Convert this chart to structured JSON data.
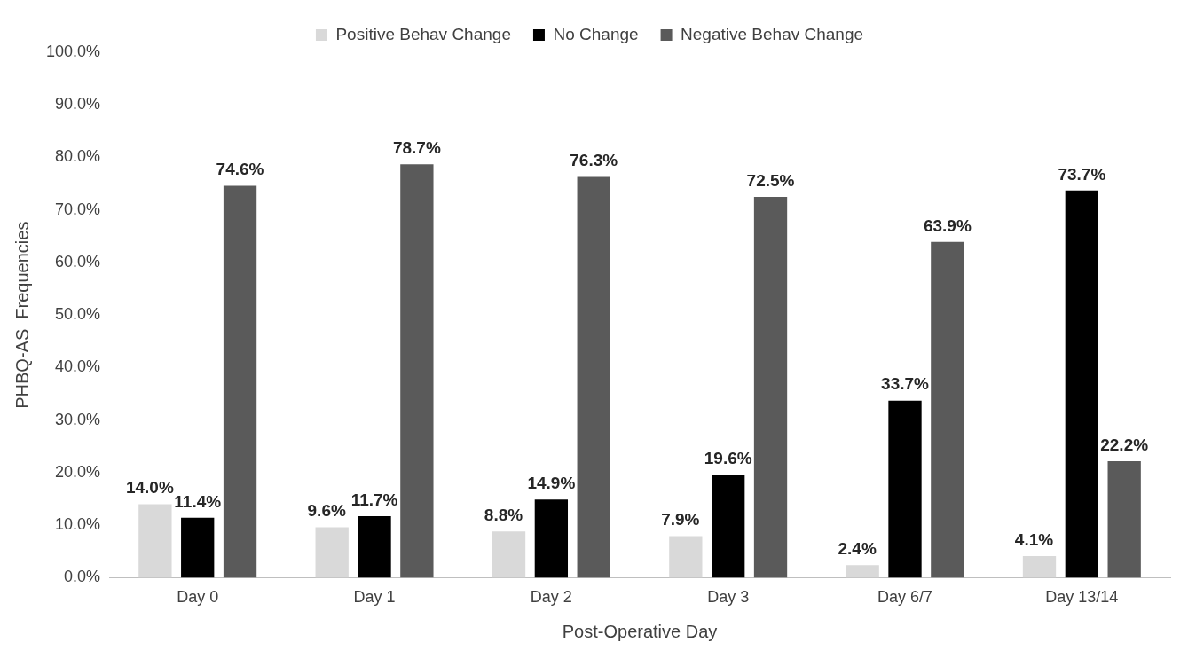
{
  "chart_data": {
    "type": "bar",
    "xlabel": "Post-Operative Day",
    "ylabel": "PHBQ-AS  Frequencies",
    "categories": [
      "Day 0",
      "Day 1",
      "Day 2",
      "Day 3",
      "Day 6/7",
      "Day 13/14"
    ],
    "series": [
      {
        "name": "Positive Behav Change",
        "color": "#d9d9d9",
        "values": [
          14.0,
          9.6,
          8.8,
          7.9,
          2.4,
          4.1
        ]
      },
      {
        "name": "No Change",
        "color": "#000000",
        "values": [
          11.4,
          11.7,
          14.9,
          19.6,
          33.7,
          73.7
        ]
      },
      {
        "name": "Negative Behav Change",
        "color": "#5a5a5a",
        "values": [
          74.6,
          78.7,
          76.3,
          72.5,
          63.9,
          22.2
        ]
      }
    ],
    "value_labels": [
      [
        "14.0%",
        "9.6%",
        "8.8%",
        "7.9%",
        "2.4%",
        "4.1%"
      ],
      [
        "11.4%",
        "11.7%",
        "14.9%",
        "19.6%",
        "33.7%",
        "73.7%"
      ],
      [
        "74.6%",
        "78.7%",
        "76.3%",
        "72.5%",
        "63.9%",
        "22.2%"
      ]
    ],
    "ylim": [
      0,
      100
    ],
    "yticks": [
      {
        "value": 0,
        "label": "0.0%"
      },
      {
        "value": 10,
        "label": "10.0%"
      },
      {
        "value": 20,
        "label": "20.0%"
      },
      {
        "value": 30,
        "label": "30.0%"
      },
      {
        "value": 40,
        "label": "40.0%"
      },
      {
        "value": 50,
        "label": "50.0%"
      },
      {
        "value": 60,
        "label": "60.0%"
      },
      {
        "value": 70,
        "label": "70.0%"
      },
      {
        "value": 80,
        "label": "80.0%"
      },
      {
        "value": 90,
        "label": "90.0%"
      },
      {
        "value": 100,
        "label": "100.0%"
      }
    ],
    "grid": false,
    "legend": "top"
  }
}
